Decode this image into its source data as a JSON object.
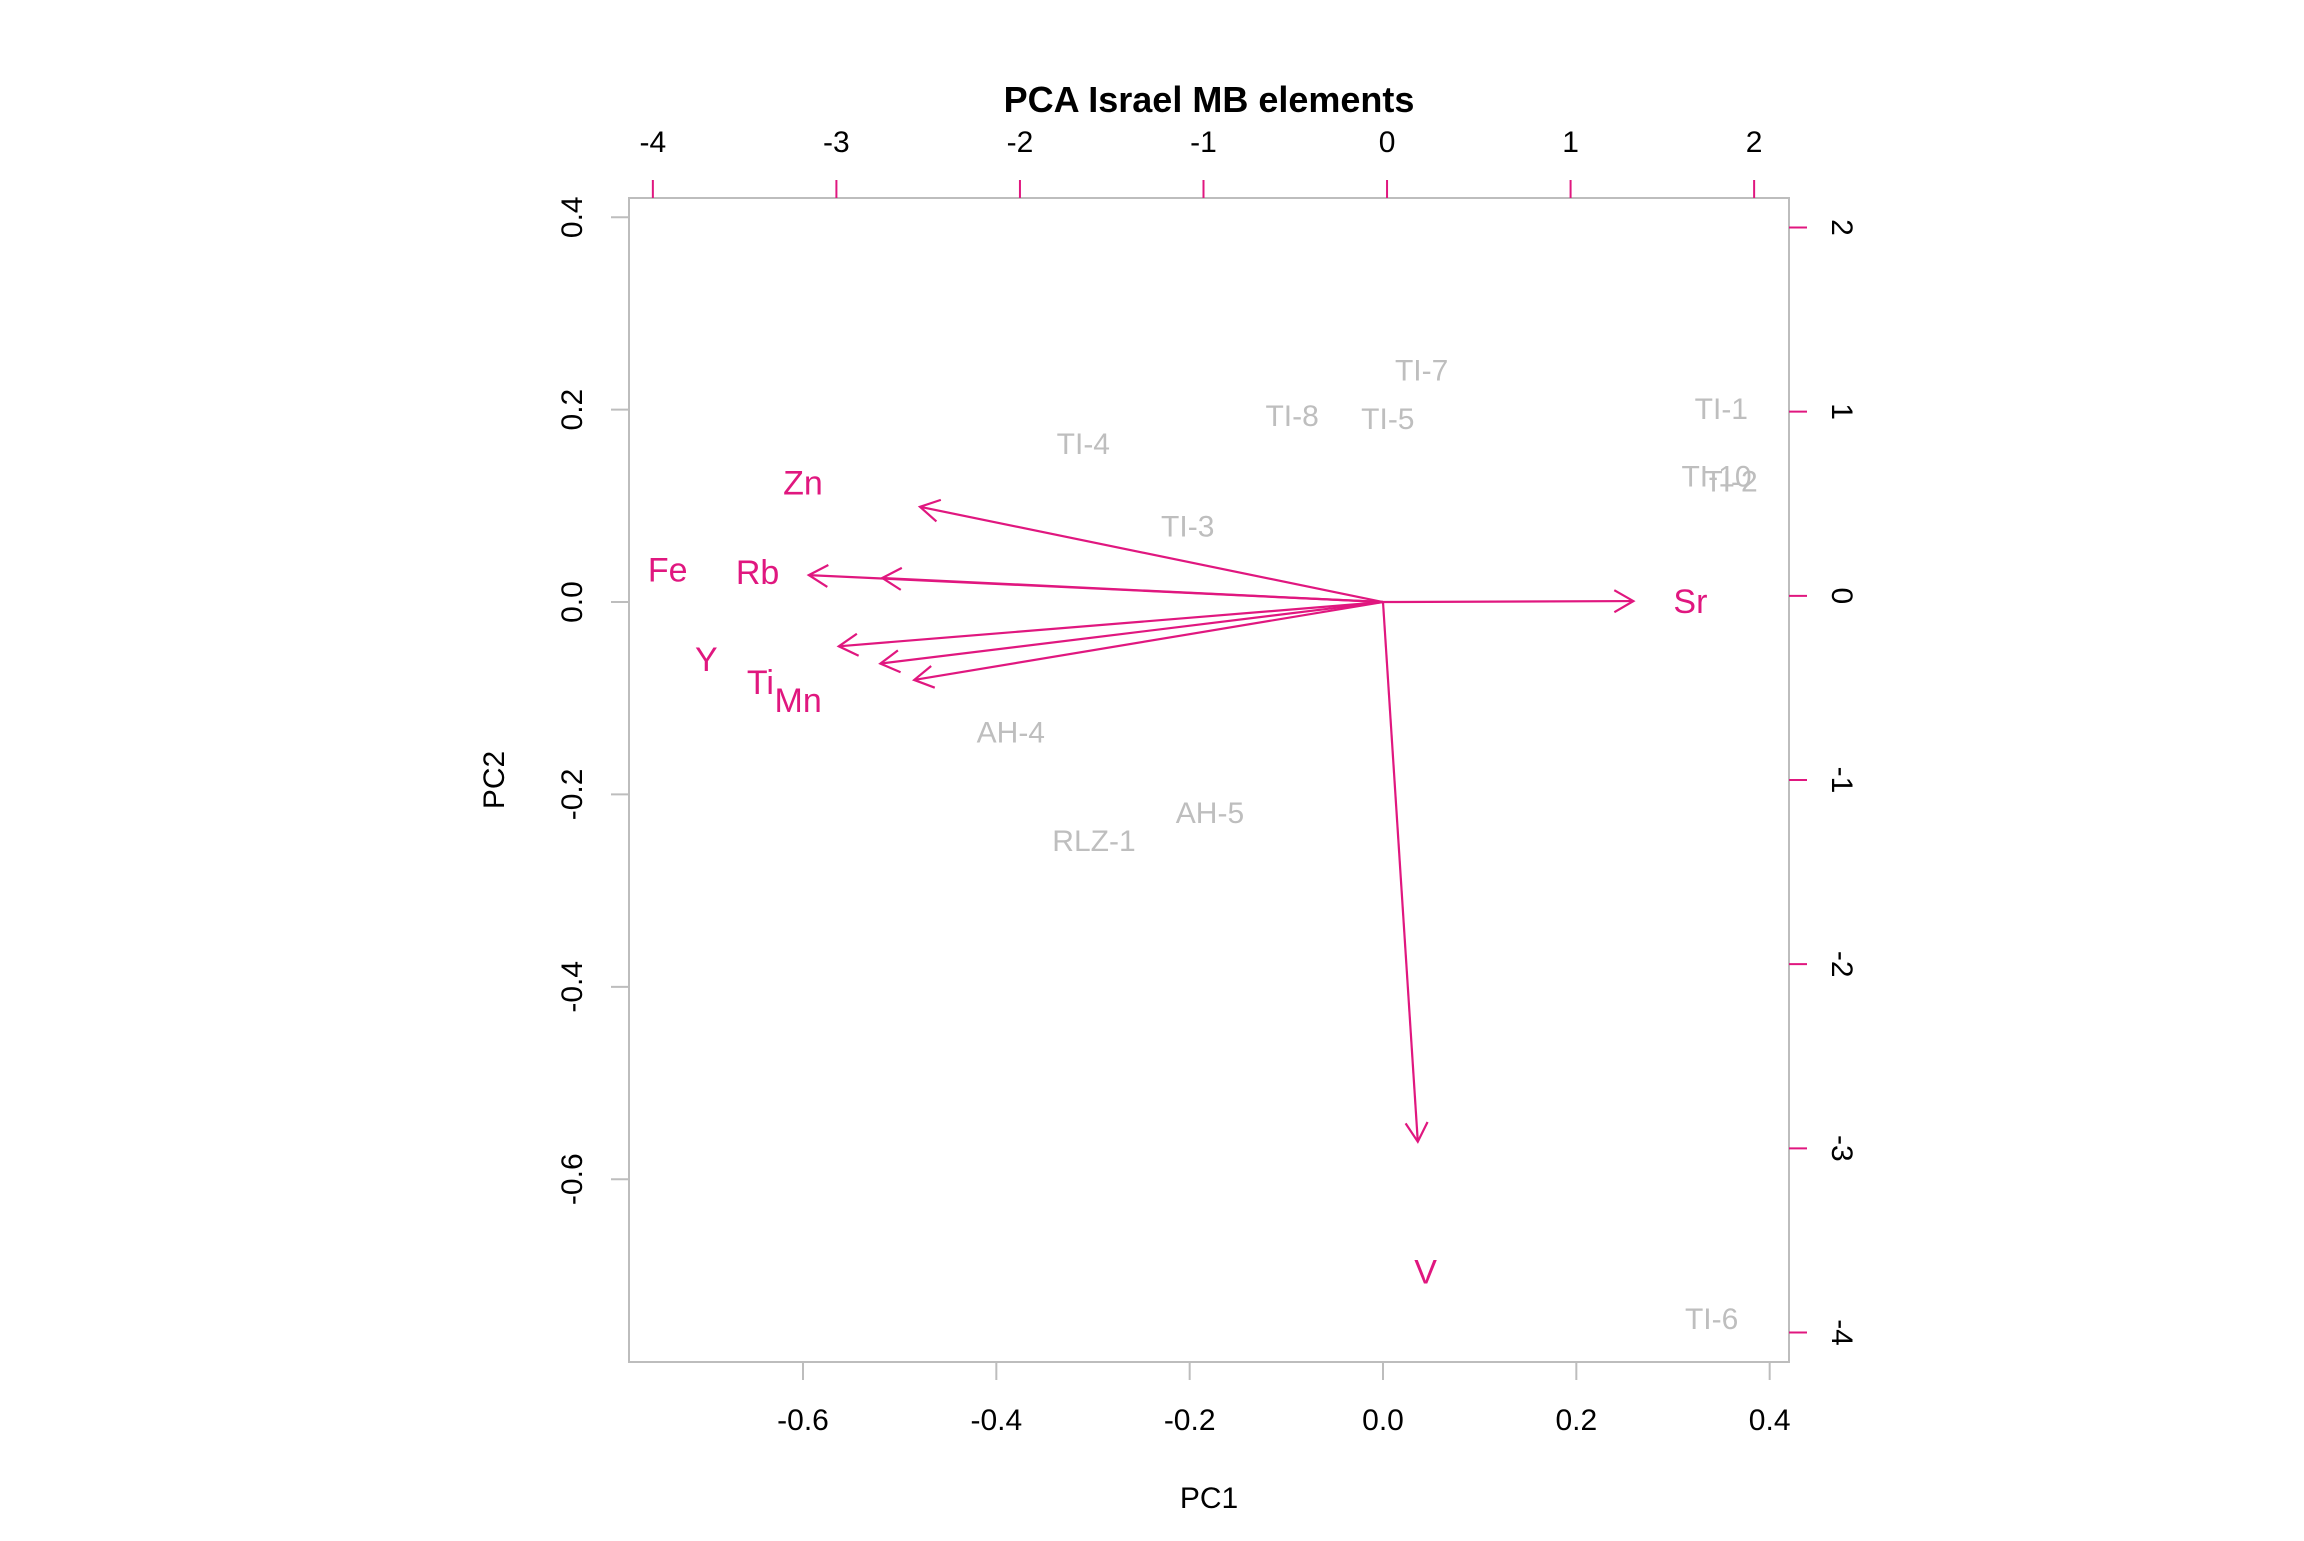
{
  "chart_data": {
    "type": "biplot",
    "title": "PCA Israel MB elements",
    "xlabel": "PC1",
    "ylabel": "PC2",
    "xlim": [
      -0.78,
      0.42
    ],
    "ylim": [
      -0.79,
      0.42
    ],
    "top_xlim": [
      -4.13,
      2.19
    ],
    "right_ylim": [
      -4.16,
      2.16
    ],
    "x_ticks": [
      "-0.6",
      "-0.4",
      "-0.2",
      "0.0",
      "0.2",
      "0.4"
    ],
    "y_ticks": [
      "-0.6",
      "-0.4",
      "-0.2",
      "0.0",
      "0.2",
      "0.4"
    ],
    "top_ticks": [
      "-4",
      "-3",
      "-2",
      "-1",
      "0",
      "1",
      "2"
    ],
    "right_ticks": [
      "-4",
      "-3",
      "-2",
      "-1",
      "0",
      "1",
      "2"
    ],
    "point_color": "#bebebe",
    "loading_color": "#e0177f",
    "samples": [
      {
        "label": "TI-7",
        "x": 0.04,
        "y": 0.24
      },
      {
        "label": "TI-8",
        "x": -0.094,
        "y": 0.193
      },
      {
        "label": "TI-5",
        "x": 0.005,
        "y": 0.19
      },
      {
        "label": "TI-1",
        "x": 0.35,
        "y": 0.2
      },
      {
        "label": "TI-10",
        "x": 0.345,
        "y": 0.13
      },
      {
        "label": "TI-2",
        "x": 0.36,
        "y": 0.125
      },
      {
        "label": "TI-4",
        "x": -0.31,
        "y": 0.164
      },
      {
        "label": "TI-3",
        "x": -0.202,
        "y": 0.078
      },
      {
        "label": "AH-4",
        "x": -0.385,
        "y": -0.136
      },
      {
        "label": "AH-5",
        "x": -0.179,
        "y": -0.22
      },
      {
        "label": "RLZ-1",
        "x": -0.299,
        "y": -0.249
      },
      {
        "label": "TI-6",
        "x": 0.34,
        "y": -0.746
      }
    ],
    "loadings": [
      {
        "label": "Sr",
        "x": 0.259,
        "y": 0.001,
        "label_x": 0.318,
        "label_y": 0.0
      },
      {
        "label": "Zn",
        "x": -0.479,
        "y": 0.099,
        "label_x": -0.6,
        "label_y": 0.123
      },
      {
        "label": "Fe",
        "x": -0.594,
        "y": 0.028,
        "label_x": -0.74,
        "label_y": 0.033
      },
      {
        "label": "Rb",
        "x": -0.518,
        "y": 0.025,
        "label_x": -0.647,
        "label_y": 0.03
      },
      {
        "label": "Y",
        "x": -0.563,
        "y": -0.046,
        "label_x": -0.7,
        "label_y": -0.06
      },
      {
        "label": "Ti",
        "x": -0.52,
        "y": -0.064,
        "label_x": -0.644,
        "label_y": -0.084
      },
      {
        "label": "Mn",
        "x": -0.485,
        "y": -0.081,
        "label_x": -0.605,
        "label_y": -0.103
      },
      {
        "label": "V",
        "x": 0.036,
        "y": -0.561,
        "label_x": 0.044,
        "label_y": -0.697
      }
    ]
  }
}
